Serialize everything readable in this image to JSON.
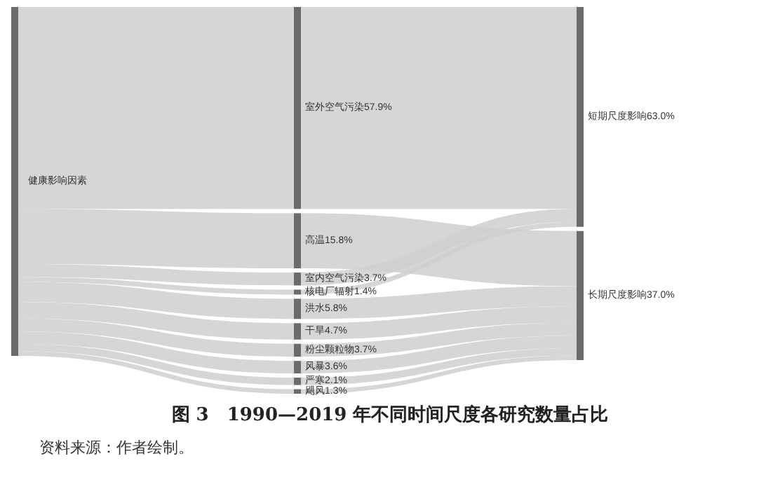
{
  "chart_data": {
    "type": "other",
    "title": "图 3　1990—2019 年不同时间尺度各研究数量占比",
    "annotations": [
      "资料来源：作者绘制。"
    ],
    "xlabel": "健康影响因素",
    "categories": [
      "室外空气污染",
      "高温",
      "室内空气污染",
      "核电厂辐射",
      "洪水",
      "干旱",
      "粉尘颗粒物",
      "风暴",
      "严寒",
      "飓风"
    ],
    "series": [
      {
        "name": "短期尺度影响",
        "color": "#cfcfcf",
        "values": [
          57.9,
          null,
          3.7,
          1.4,
          null,
          null,
          null,
          null,
          null,
          null
        ],
        "value_labels": [
          "57.9%",
          null,
          "3.7%",
          "1.4%",
          null,
          null,
          null,
          null,
          null,
          null
        ]
      },
      {
        "name": "长期尺度影响",
        "color": "#cfcfcf",
        "values": [
          null,
          15.8,
          null,
          null,
          5.8,
          4.7,
          3.7,
          3.6,
          2.1,
          1.3
        ],
        "value_labels": [
          null,
          "15.8%",
          null,
          null,
          "5.8%",
          "4.7%",
          "3.7%",
          "3.6%",
          "2.1%",
          "1.3%"
        ]
      }
    ],
    "totals": [
      "63.0%",
      "37.0%"
    ]
  }
}
